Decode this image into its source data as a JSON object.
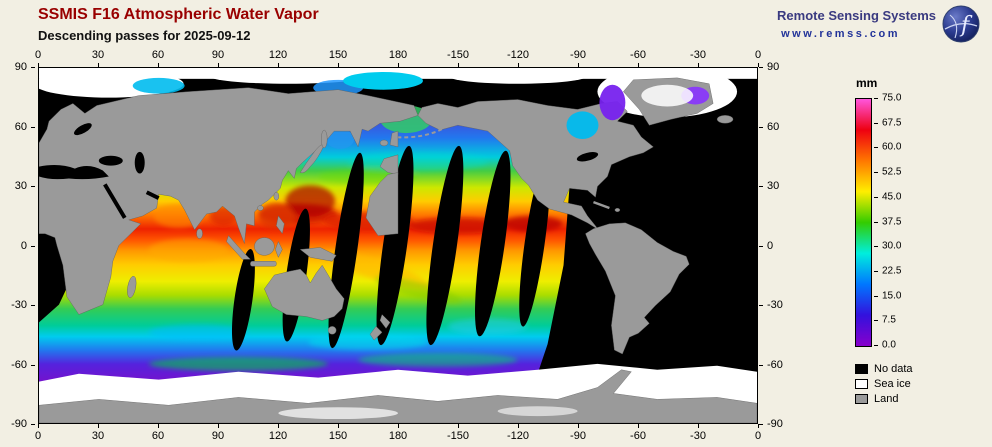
{
  "header": {
    "title": "SSMIS F16 Atmospheric Water Vapor",
    "subtitle": "Descending passes for 2025-09-12"
  },
  "branding": {
    "org_name": "Remote Sensing Systems",
    "website": "www.remss.com"
  },
  "map": {
    "projection": "equirectangular",
    "lon_ticks": [
      "0",
      "30",
      "60",
      "90",
      "120",
      "150",
      "180",
      "-150",
      "-120",
      "-90",
      "-60",
      "-30",
      "0"
    ],
    "lat_ticks": [
      "90",
      "60",
      "30",
      "0",
      "-30",
      "-60",
      "-90"
    ]
  },
  "colorbar": {
    "unit": "mm",
    "range_min_mm": 0.0,
    "range_max_mm": 75.0,
    "tick_labels": [
      "75.0",
      "67.5",
      "60.0",
      "52.5",
      "45.0",
      "37.5",
      "30.0",
      "22.5",
      "15.0",
      "7.5",
      "0.0"
    ],
    "gradient_top_to_bottom": [
      "#ff55dd",
      "#ee0011",
      "#ff7700",
      "#ffee00",
      "#33cc00",
      "#00eedd",
      "#0077ff",
      "#3311dd",
      "#8800cc"
    ]
  },
  "legend": {
    "items": [
      {
        "label": "No data",
        "color": "#000000"
      },
      {
        "label": "Sea ice",
        "color": "#ffffff"
      },
      {
        "label": "Land",
        "color": "#9a9a9a"
      }
    ]
  }
}
